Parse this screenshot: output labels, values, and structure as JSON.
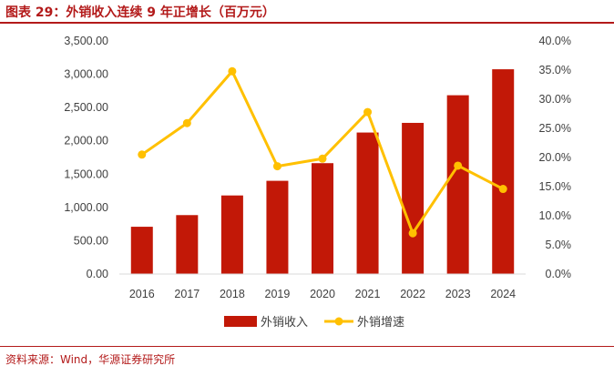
{
  "header": {
    "title": "图表 29：外销收入连续 9 年正增长（百万元）"
  },
  "footer": {
    "source": "资料来源：Wind，华源证券研究所"
  },
  "colors": {
    "bar": "#c21807",
    "line": "#ffc000",
    "accent": "#b31a1a"
  },
  "chart_data": {
    "type": "bar",
    "categories": [
      "2016",
      "2017",
      "2018",
      "2019",
      "2020",
      "2021",
      "2022",
      "2023",
      "2024"
    ],
    "series": [
      {
        "name": "外销收入",
        "type": "bar",
        "axis": "left",
        "values": [
          710,
          885,
          1180,
          1400,
          1665,
          2125,
          2270,
          2685,
          3075
        ]
      },
      {
        "name": "外销增速",
        "type": "line",
        "axis": "right",
        "values": [
          20.5,
          25.9,
          34.8,
          18.5,
          19.8,
          27.8,
          7.0,
          18.6,
          14.6
        ]
      }
    ],
    "y_left": {
      "ylim": [
        0,
        3500
      ],
      "ticks": [
        "0.00",
        "500.00",
        "1,000.00",
        "1,500.00",
        "2,000.00",
        "2,500.00",
        "3,000.00",
        "3,500.00"
      ]
    },
    "y_right": {
      "ylim": [
        0,
        40
      ],
      "ticks": [
        "0.0%",
        "5.0%",
        "10.0%",
        "15.0%",
        "20.0%",
        "25.0%",
        "30.0%",
        "35.0%",
        "40.0%"
      ]
    },
    "legend": {
      "position": "bottom"
    },
    "grid": false
  }
}
